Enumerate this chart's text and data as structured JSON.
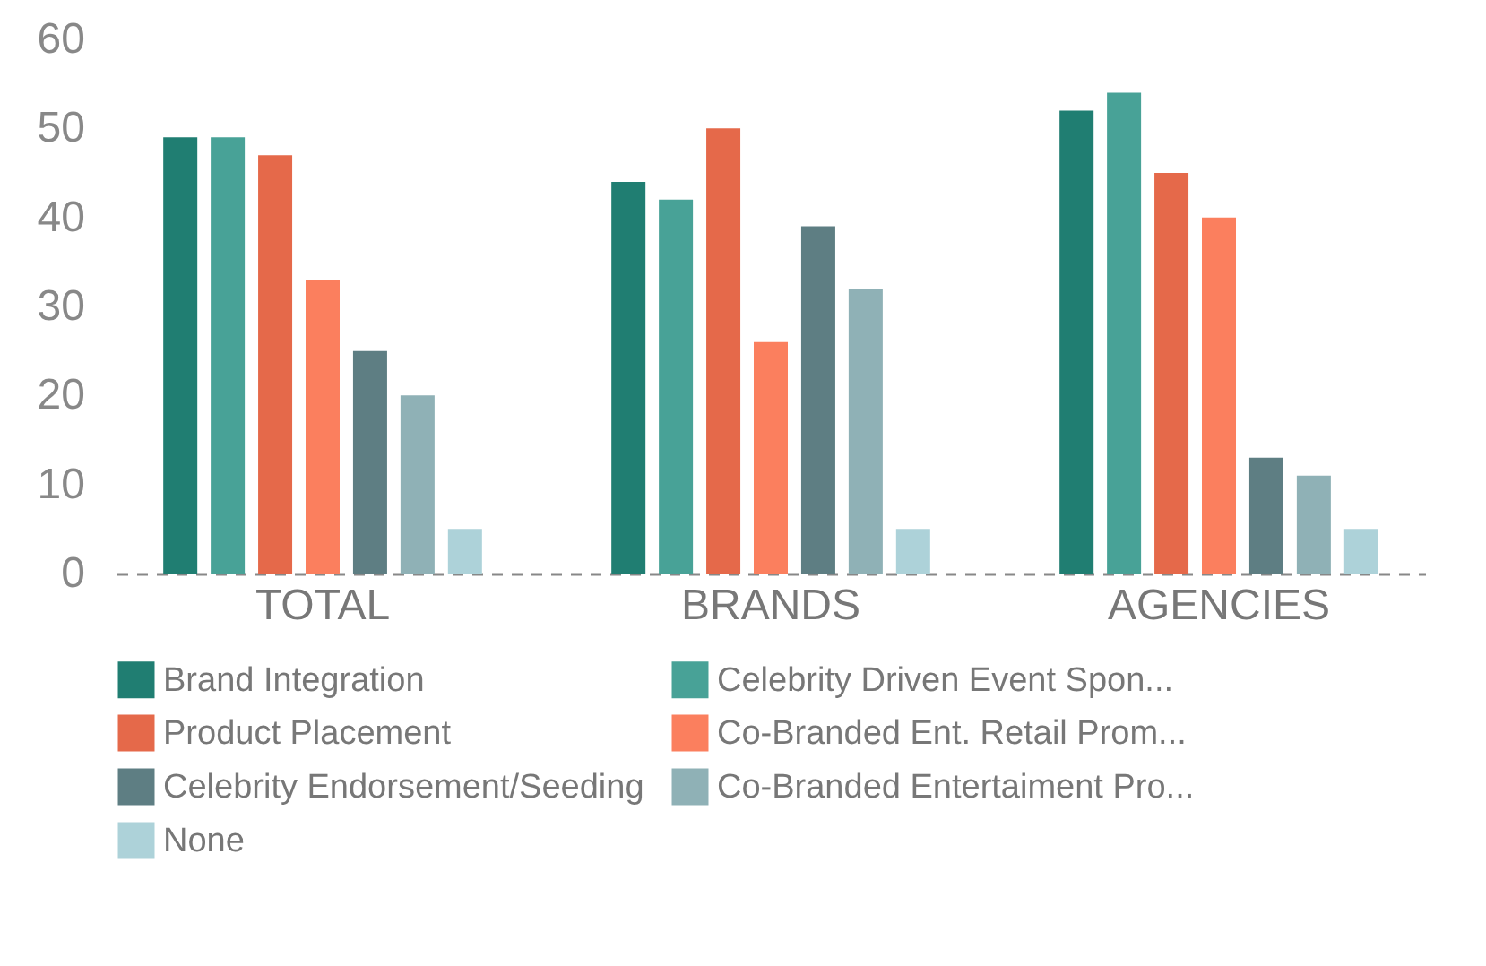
{
  "chart_data": {
    "type": "bar",
    "categories": [
      "TOTAL",
      "BRANDS",
      "AGENCIES"
    ],
    "series": [
      {
        "name": "Brand Integration",
        "color": "#207e72",
        "values": [
          49,
          44,
          52
        ]
      },
      {
        "name": "Celebrity Driven Event Spon...",
        "color": "#48a297",
        "values": [
          49,
          42,
          54
        ]
      },
      {
        "name": "Product Placement",
        "color": "#e5694a",
        "values": [
          47,
          50,
          45
        ]
      },
      {
        "name": "Co-Branded Ent. Retail Prom...",
        "color": "#fb7f5e",
        "values": [
          33,
          26,
          40
        ]
      },
      {
        "name": "Celebrity Endorsement/Seeding",
        "color": "#5e7e83",
        "values": [
          25,
          39,
          13
        ]
      },
      {
        "name": "Co-Branded Entertaiment Pro...",
        "color": "#8fb1b6",
        "values": [
          20,
          32,
          11
        ]
      },
      {
        "name": "None",
        "color": "#add2d9",
        "values": [
          5,
          5,
          5
        ]
      }
    ],
    "ylim": [
      0,
      60
    ],
    "yticks": [
      0,
      10,
      20,
      30,
      40,
      50,
      60
    ],
    "legend": "bottom"
  }
}
